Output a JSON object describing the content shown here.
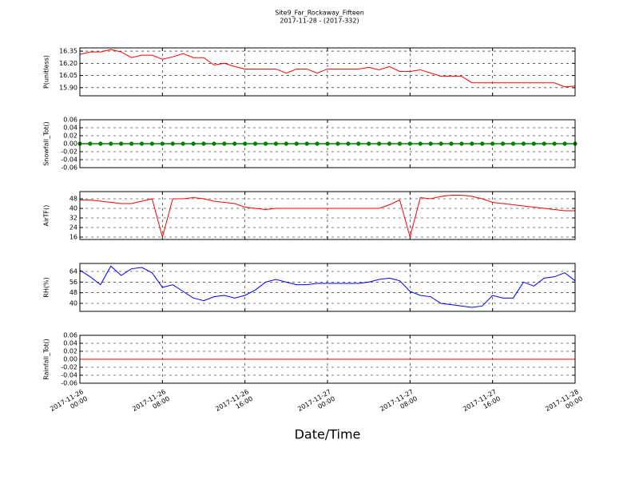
{
  "chart_data": {
    "type": "line",
    "title": "Site9_Far_Rockaway_Fifteen",
    "subtitle": "2017-11-28 - (2017-332)",
    "xlabel": "Date/Time",
    "xlim": [
      "2017-11-26 00:00",
      "2017-11-28 00:00"
    ],
    "xticks": [
      {
        "value": "2017-11-26 00:00",
        "label": "2017-11-26\n00:00"
      },
      {
        "value": "2017-11-26 08:00",
        "label": "2017-11-26\n08:00"
      },
      {
        "value": "2017-11-26 16:00",
        "label": "2017-11-26\n16:00"
      },
      {
        "value": "2017-11-27 00:00",
        "label": "2017-11-27\n00:00"
      },
      {
        "value": "2017-11-27 08:00",
        "label": "2017-11-27\n08:00"
      },
      {
        "value": "2017-11-27 16:00",
        "label": "2017-11-27\n16:00"
      },
      {
        "value": "2017-11-28 00:00",
        "label": "2017-11-28\n00:00"
      }
    ],
    "grid": true,
    "x": [
      "2017-11-26 00:00",
      "2017-11-26 01:00",
      "2017-11-26 02:00",
      "2017-11-26 03:00",
      "2017-11-26 04:00",
      "2017-11-26 05:00",
      "2017-11-26 06:00",
      "2017-11-26 07:00",
      "2017-11-26 08:00",
      "2017-11-26 09:00",
      "2017-11-26 10:00",
      "2017-11-26 11:00",
      "2017-11-26 12:00",
      "2017-11-26 13:00",
      "2017-11-26 14:00",
      "2017-11-26 15:00",
      "2017-11-26 16:00",
      "2017-11-26 17:00",
      "2017-11-26 18:00",
      "2017-11-26 19:00",
      "2017-11-26 20:00",
      "2017-11-26 21:00",
      "2017-11-26 22:00",
      "2017-11-26 23:00",
      "2017-11-27 00:00",
      "2017-11-27 01:00",
      "2017-11-27 02:00",
      "2017-11-27 03:00",
      "2017-11-27 04:00",
      "2017-11-27 05:00",
      "2017-11-27 06:00",
      "2017-11-27 07:00",
      "2017-11-27 08:00",
      "2017-11-27 09:00",
      "2017-11-27 10:00",
      "2017-11-27 11:00",
      "2017-11-27 12:00",
      "2017-11-27 13:00",
      "2017-11-27 14:00",
      "2017-11-27 15:00",
      "2017-11-27 16:00",
      "2017-11-27 17:00",
      "2017-11-27 18:00",
      "2017-11-27 19:00",
      "2017-11-27 20:00",
      "2017-11-27 21:00",
      "2017-11-27 22:00",
      "2017-11-27 23:00",
      "2017-11-28 00:00"
    ],
    "panels": [
      {
        "ylabel": "P(unitless)",
        "ylim": [
          15.8,
          16.39
        ],
        "yticks": [
          {
            "value": 15.9,
            "label": "15.90"
          },
          16.05,
          {
            "value": 16.2,
            "label": "16.20"
          },
          16.35
        ],
        "series": [
          {
            "color": "#ff0000",
            "markers": false,
            "values": [
              16.31,
              16.34,
              16.34,
              16.37,
              16.34,
              16.27,
              16.3,
              16.3,
              16.25,
              16.28,
              16.32,
              16.27,
              16.27,
              16.18,
              16.2,
              16.16,
              16.13,
              16.13,
              16.13,
              16.13,
              16.08,
              16.13,
              16.13,
              16.08,
              16.13,
              16.13,
              16.13,
              16.13,
              16.15,
              16.12,
              16.16,
              16.1,
              16.1,
              16.12,
              16.08,
              16.04,
              16.04,
              16.04,
              15.96,
              15.96,
              15.96,
              15.96,
              15.96,
              15.96,
              15.96,
              15.96,
              15.96,
              15.91,
              15.92
            ]
          }
        ]
      },
      {
        "ylabel": "Snowfall_Tot()",
        "ylim": [
          -0.06,
          0.06
        ],
        "yticks": [
          -0.06,
          -0.04,
          -0.02,
          {
            "value": 0,
            "label": "0.00"
          },
          0.02,
          0.04,
          0.06
        ],
        "series": [
          {
            "color": "#008000",
            "markers": true,
            "values": [
              0,
              0,
              0,
              0,
              0,
              0,
              0,
              0,
              0,
              0,
              0,
              0,
              0,
              0,
              0,
              0,
              0,
              0,
              0,
              0,
              0,
              0,
              0,
              0,
              0,
              0,
              0,
              0,
              0,
              0,
              0,
              0,
              0,
              0,
              0,
              0,
              0,
              0,
              0,
              0,
              0,
              0,
              0,
              0,
              0,
              0,
              0,
              0,
              0
            ]
          }
        ]
      },
      {
        "ylabel": "AirTF()",
        "ylim": [
          14,
          54
        ],
        "yticks": [
          16,
          24,
          32,
          40,
          48
        ],
        "series": [
          {
            "color": "#ff0000",
            "markers": false,
            "values": [
              47,
              47,
              46,
              45,
              44,
              44,
              46,
              48,
              16,
              48,
              48,
              49,
              48,
              46,
              45,
              44,
              41,
              40,
              39,
              40,
              40,
              40,
              40,
              40,
              40,
              40,
              40,
              40,
              40,
              40,
              43,
              47,
              16,
              49,
              48,
              50,
              51,
              51,
              50,
              48,
              45,
              44,
              43,
              42,
              41,
              40,
              39,
              38,
              38
            ]
          }
        ]
      },
      {
        "ylabel": "RH(%)",
        "ylim": [
          34,
          70
        ],
        "yticks": [
          40,
          48,
          56,
          64
        ],
        "series": [
          {
            "color": "#0000ff",
            "markers": false,
            "values": [
              65,
              60,
              54,
              68,
              61,
              66,
              67,
              63,
              52,
              54,
              49,
              44,
              42,
              45,
              46,
              44,
              46,
              50,
              56,
              58,
              56,
              54,
              54,
              55,
              55,
              55,
              55,
              55,
              56,
              58,
              59,
              57,
              49,
              46,
              45,
              40,
              39,
              38,
              37,
              38,
              46,
              44,
              44,
              56,
              53,
              59,
              60,
              63,
              57
            ]
          }
        ]
      },
      {
        "ylabel": "Rainfall_Tot()",
        "ylim": [
          -0.06,
          0.06
        ],
        "yticks": [
          -0.06,
          -0.04,
          -0.02,
          {
            "value": 0,
            "label": "0.00"
          },
          0.02,
          0.04,
          0.06
        ],
        "series": [
          {
            "color": "#ff0000",
            "markers": false,
            "values": [
              0,
              0,
              0,
              0,
              0,
              0,
              0,
              0,
              0,
              0,
              0,
              0,
              0,
              0,
              0,
              0,
              0,
              0,
              0,
              0,
              0,
              0,
              0,
              0,
              0,
              0,
              0,
              0,
              0,
              0,
              0,
              0,
              0,
              0,
              0,
              0,
              0,
              0,
              0,
              0,
              0,
              0,
              0,
              0,
              0,
              0,
              0,
              0,
              0
            ]
          }
        ]
      }
    ]
  }
}
